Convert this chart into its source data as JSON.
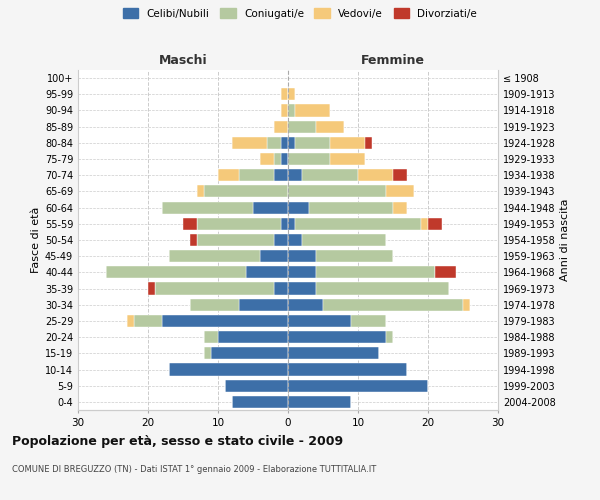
{
  "age_groups": [
    "0-4",
    "5-9",
    "10-14",
    "15-19",
    "20-24",
    "25-29",
    "30-34",
    "35-39",
    "40-44",
    "45-49",
    "50-54",
    "55-59",
    "60-64",
    "65-69",
    "70-74",
    "75-79",
    "80-84",
    "85-89",
    "90-94",
    "95-99",
    "100+"
  ],
  "birth_years": [
    "2004-2008",
    "1999-2003",
    "1994-1998",
    "1989-1993",
    "1984-1988",
    "1979-1983",
    "1974-1978",
    "1969-1973",
    "1964-1968",
    "1959-1963",
    "1954-1958",
    "1949-1953",
    "1944-1948",
    "1939-1943",
    "1934-1938",
    "1929-1933",
    "1924-1928",
    "1919-1923",
    "1914-1918",
    "1909-1913",
    "≤ 1908"
  ],
  "colors": {
    "celibi": "#3d6fa8",
    "coniugati": "#b5c9a0",
    "vedovi": "#f5c97a",
    "divorziati": "#c0392b"
  },
  "maschi": {
    "celibi": [
      8,
      9,
      17,
      11,
      10,
      18,
      7,
      2,
      6,
      4,
      2,
      1,
      5,
      0,
      2,
      1,
      1,
      0,
      0,
      0,
      0
    ],
    "coniugati": [
      0,
      0,
      0,
      1,
      2,
      4,
      7,
      17,
      20,
      13,
      11,
      12,
      13,
      12,
      5,
      1,
      2,
      0,
      0,
      0,
      0
    ],
    "vedovi": [
      0,
      0,
      0,
      0,
      0,
      1,
      0,
      0,
      0,
      0,
      0,
      0,
      0,
      1,
      3,
      2,
      5,
      2,
      1,
      1,
      0
    ],
    "divorziati": [
      0,
      0,
      0,
      0,
      0,
      0,
      0,
      1,
      0,
      0,
      1,
      2,
      0,
      0,
      0,
      0,
      0,
      0,
      0,
      0,
      0
    ]
  },
  "femmine": {
    "celibi": [
      9,
      20,
      17,
      13,
      14,
      9,
      5,
      4,
      4,
      4,
      2,
      1,
      3,
      0,
      2,
      0,
      1,
      0,
      0,
      0,
      0
    ],
    "coniugati": [
      0,
      0,
      0,
      0,
      1,
      5,
      20,
      19,
      17,
      11,
      12,
      18,
      12,
      14,
      8,
      6,
      5,
      4,
      1,
      0,
      0
    ],
    "vedovi": [
      0,
      0,
      0,
      0,
      0,
      0,
      1,
      0,
      0,
      0,
      0,
      1,
      2,
      4,
      5,
      5,
      5,
      4,
      5,
      1,
      0
    ],
    "divorziati": [
      0,
      0,
      0,
      0,
      0,
      0,
      0,
      0,
      3,
      0,
      0,
      2,
      0,
      0,
      2,
      0,
      1,
      0,
      0,
      0,
      0
    ]
  },
  "xlim": 30,
  "title": "Popolazione per età, sesso e stato civile - 2009",
  "subtitle": "COMUNE DI BREGUZZO (TN) - Dati ISTAT 1° gennaio 2009 - Elaborazione TUTTITALIA.IT",
  "ylabel_left": "Fasce di età",
  "ylabel_right": "Anni di nascita",
  "xlabel_maschi": "Maschi",
  "xlabel_femmine": "Femmine",
  "legend_labels": [
    "Celibi/Nubili",
    "Coniugati/e",
    "Vedovi/e",
    "Divorziati/e"
  ],
  "bg_color": "#f5f5f5",
  "plot_bg_color": "#ffffff",
  "bar_height": 0.75
}
